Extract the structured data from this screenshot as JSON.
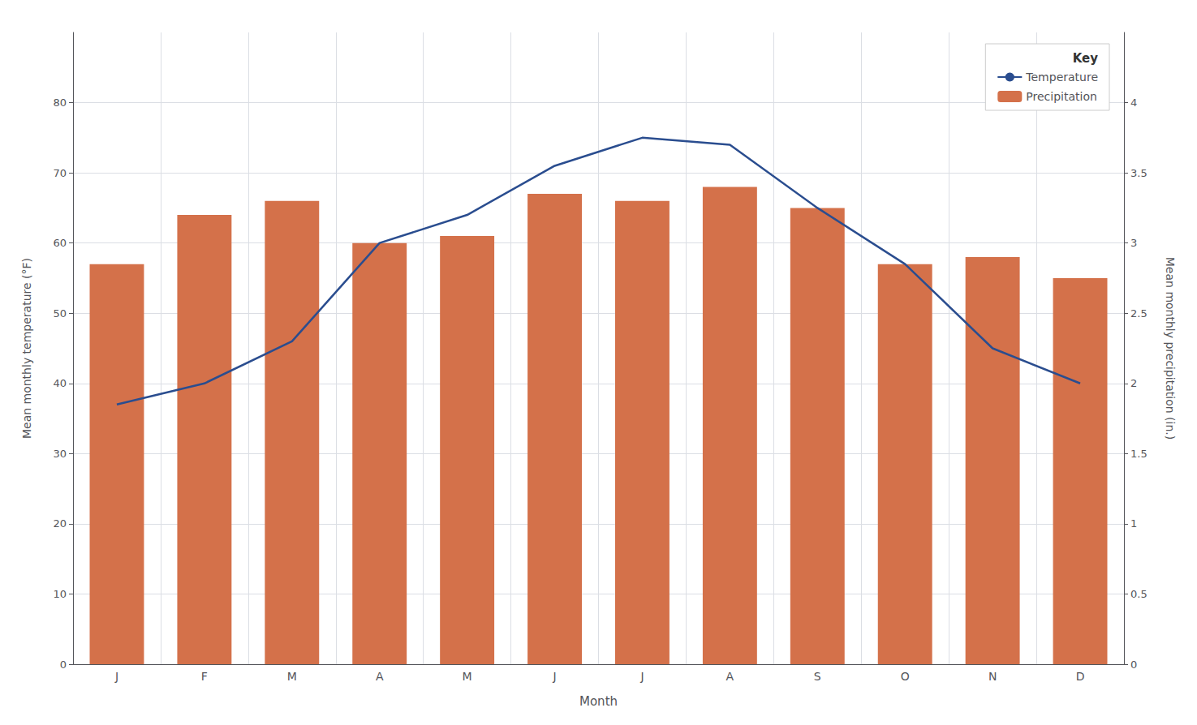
{
  "chart_data": {
    "type": "bar",
    "x_label": "Month",
    "y_label": "Mean monthly temperature (°F)",
    "y2_label": "Mean monthly precipitation (in.)",
    "categories": [
      "J",
      "F",
      "M",
      "A",
      "M",
      "J",
      "J",
      "A",
      "S",
      "O",
      "N",
      "D"
    ],
    "series": [
      {
        "name": "Temperature",
        "type": "line",
        "color": "#2a4d8f",
        "values": [
          37,
          40,
          46,
          60,
          64,
          71,
          75,
          74,
          65,
          57,
          45,
          40
        ]
      },
      {
        "name": "Precipitation",
        "type": "bar",
        "color": "#d4714a",
        "axis": "y2",
        "values": [
          2.85,
          3.2,
          3.3,
          3.0,
          3.05,
          3.35,
          3.3,
          3.4,
          3.25,
          2.85,
          2.9,
          2.75
        ]
      }
    ],
    "ylim": [
      0,
      90
    ],
    "yticks": [
      0,
      10,
      20,
      30,
      40,
      50,
      60,
      70,
      80
    ],
    "y2lim": [
      0,
      4.5
    ],
    "y2ticks": [
      0,
      0.5,
      1,
      1.5,
      2,
      2.5,
      3,
      3.5,
      4
    ],
    "grid": true,
    "legend": "upper right",
    "legend_title": "Key"
  }
}
